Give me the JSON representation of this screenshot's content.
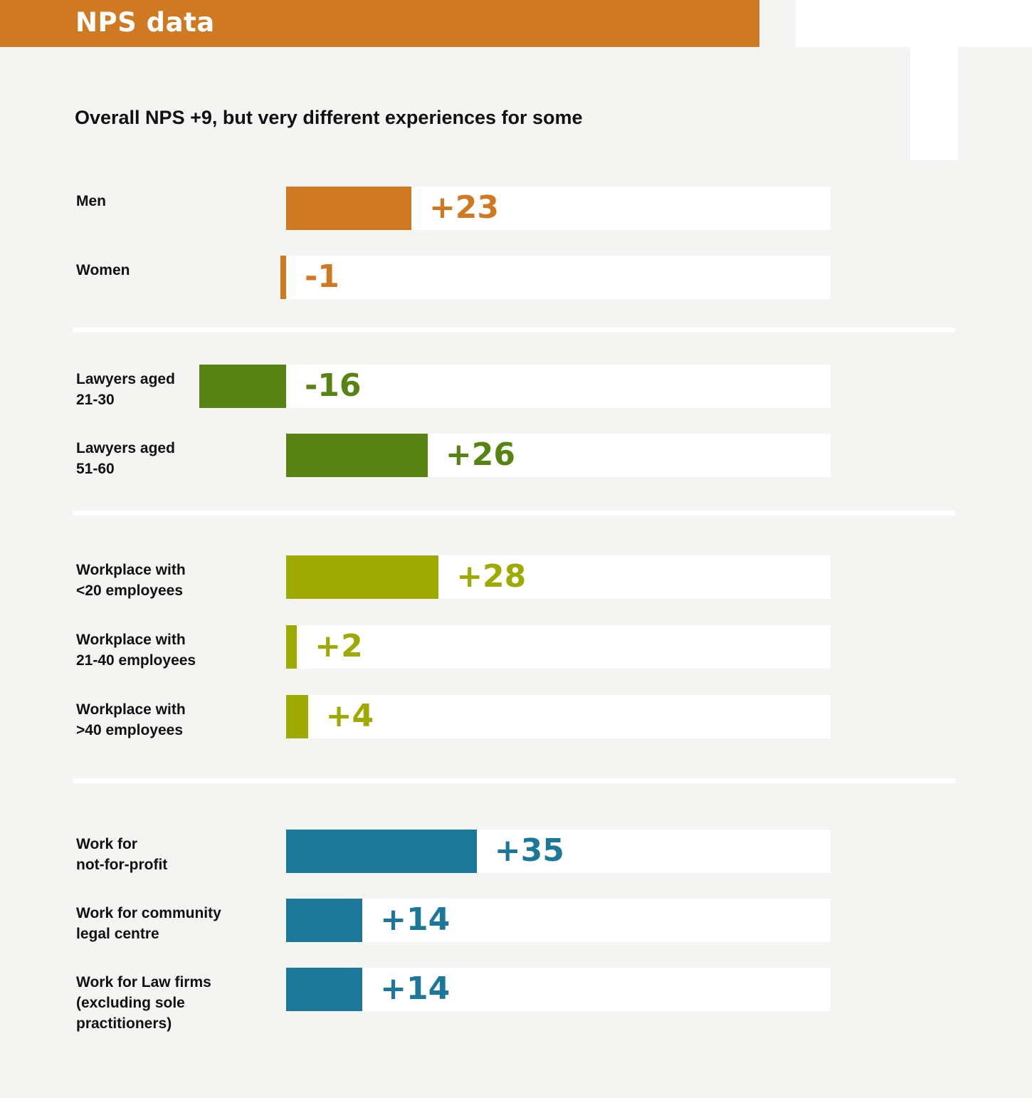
{
  "header": {
    "title": "NPS data"
  },
  "chart_data": {
    "type": "bar",
    "orientation": "horizontal",
    "title": "Overall NPS +9, but very different experiences for some",
    "groups": [
      {
        "color": "#cf7a23",
        "rows": [
          {
            "label": "Men",
            "value": 23,
            "display": "+23"
          },
          {
            "label": "Women",
            "value": -1,
            "display": "-1"
          }
        ]
      },
      {
        "color": "#578313",
        "rows": [
          {
            "label": "Lawyers aged 21-30",
            "value": -16,
            "display": "-16"
          },
          {
            "label": "Lawyers aged 51-60",
            "value": 26,
            "display": "+26"
          }
        ]
      },
      {
        "color": "#9eaa00",
        "rows": [
          {
            "label": "Workplace with <20 employees",
            "value": 28,
            "display": "+28"
          },
          {
            "label": "Workplace with 21-40 employees",
            "value": 2,
            "display": "+2"
          },
          {
            "label": "Workplace with >40 employees",
            "value": 4,
            "display": "+4"
          }
        ]
      },
      {
        "color": "#1b7898",
        "rows": [
          {
            "label": "Work for not-for-profit",
            "value": 35,
            "display": "+35"
          },
          {
            "label": "Work for community legal centre",
            "value": 14,
            "display": "+14"
          },
          {
            "label": "Work for Law firms (excluding sole practitioners)",
            "value": 14,
            "display": "+14"
          }
        ]
      }
    ]
  }
}
